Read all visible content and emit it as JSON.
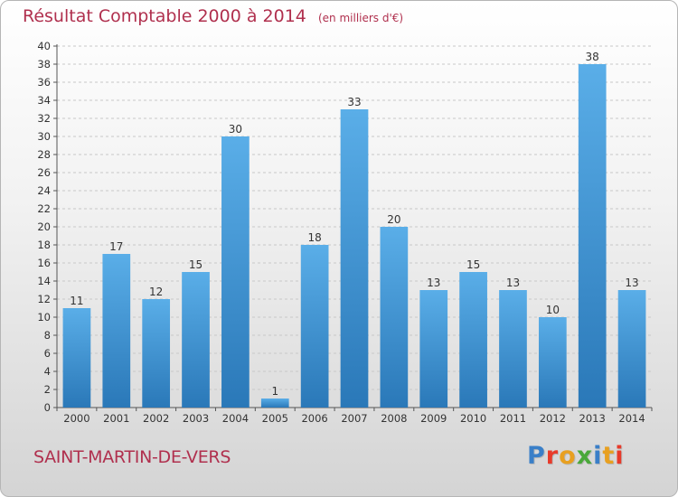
{
  "header": {
    "title": "Résultat Comptable 2000 à 2014",
    "subtitle": "(en milliers d'€)"
  },
  "footer": {
    "town": "SAINT-MARTIN-DE-VERS",
    "logo": "Proxiti"
  },
  "colors": {
    "accent": "#b0304e",
    "bar": "#3a8fd4",
    "logo_letters": [
      "#3a7fc8",
      "#e83a2a",
      "#e8a020",
      "#4aa83a",
      "#3a7fc8",
      "#e8a020",
      "#e83a2a"
    ]
  },
  "chart_data": {
    "type": "bar",
    "categories": [
      "2000",
      "2001",
      "2002",
      "2003",
      "2004",
      "2005",
      "2006",
      "2007",
      "2008",
      "2009",
      "2010",
      "2011",
      "2012",
      "2013",
      "2014"
    ],
    "values": [
      11,
      17,
      12,
      15,
      30,
      1,
      18,
      33,
      20,
      13,
      15,
      13,
      10,
      38,
      13
    ],
    "data_labels": [
      "11",
      "17",
      "12",
      "15",
      "30",
      "1",
      "18",
      "33",
      "20",
      "13",
      "15",
      "13",
      "10",
      "38",
      "13"
    ],
    "yticks": [
      "0",
      "2",
      "4",
      "6",
      "8",
      "10",
      "12",
      "14",
      "16",
      "18",
      "20",
      "22",
      "24",
      "26",
      "28",
      "30",
      "32",
      "34",
      "36",
      "38",
      "40"
    ],
    "ylim": [
      0,
      40
    ],
    "grid": true
  }
}
